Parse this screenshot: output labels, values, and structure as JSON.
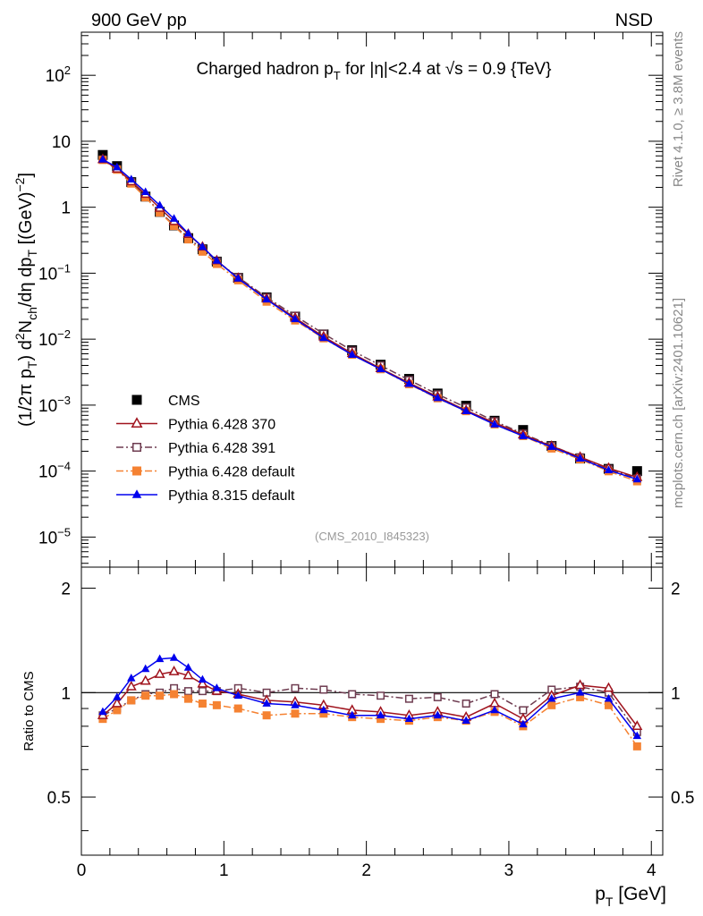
{
  "header": {
    "energy_label": "900 GeV pp",
    "process_label": "NSD"
  },
  "side_text": {
    "rivet": "Rivet 4.1.0, ≥ 3.8M events",
    "source": "mcplots.cern.ch [arXiv:2401.10621]"
  },
  "analysis_tag": "(CMS_2010_I845323)",
  "colors": {
    "cms": "#000000",
    "py6_370": "#a0141e",
    "py6_391": "#6e3c50",
    "py6_default": "#f58232",
    "py8_default": "#0000ee"
  },
  "chart_data": [
    {
      "type": "scatter",
      "title": "Charged hadron p_T for |η|<2.4 at √s = 0.9 {TeV}",
      "xlabel": "p_T [GeV]",
      "ylabel": "(1/2π p_T) d²N_ch/dη dp_T [(GeV)⁻²]",
      "yscale": "log",
      "xlim": [
        0,
        4.08
      ],
      "ylim": [
        3.5e-06,
        450
      ],
      "y_ticks": [
        {
          "value": 1e-05,
          "base": "10",
          "exp": "−5"
        },
        {
          "value": 0.0001,
          "base": "10",
          "exp": "−4"
        },
        {
          "value": 0.001,
          "base": "10",
          "exp": "−3"
        },
        {
          "value": 0.01,
          "base": "10",
          "exp": "−2"
        },
        {
          "value": 0.1,
          "base": "10",
          "exp": "−1"
        },
        {
          "value": 1,
          "base": "1",
          "exp": ""
        },
        {
          "value": 10,
          "base": "10",
          "exp": ""
        },
        {
          "value": 100,
          "base": "10",
          "exp": "2"
        }
      ],
      "x": [
        0.15,
        0.25,
        0.35,
        0.45,
        0.55,
        0.65,
        0.75,
        0.85,
        0.95,
        1.1,
        1.3,
        1.5,
        1.7,
        1.9,
        2.1,
        2.3,
        2.5,
        2.7,
        2.9,
        3.1,
        3.3,
        3.5,
        3.7,
        3.9
      ],
      "legend_position": "lower-left",
      "series": [
        {
          "name": "CMS",
          "key": "cms",
          "marker": "square-filled",
          "line": "none",
          "values": [
            6.2,
            4.2,
            2.4,
            1.45,
            0.85,
            0.53,
            0.34,
            0.23,
            0.15,
            0.085,
            0.043,
            0.022,
            0.0118,
            0.0068,
            0.0041,
            0.0025,
            0.0015,
            0.00098,
            0.00058,
            0.00042,
            0.00024,
            0.000155,
            0.000108,
            0.0001
          ]
        },
        {
          "name": "Pythia 6.428 370",
          "key": "py6_370",
          "marker": "triangle-open",
          "line": "solid",
          "values": [
            5.3,
            3.8,
            2.45,
            1.58,
            0.97,
            0.61,
            0.39,
            0.25,
            0.155,
            0.084,
            0.041,
            0.021,
            0.0109,
            0.0061,
            0.0036,
            0.00217,
            0.00134,
            0.00083,
            0.00054,
            0.000355,
            0.000239,
            0.000163,
            0.000111,
            8.05e-05
          ]
        },
        {
          "name": "Pythia 6.428 391",
          "key": "py6_391",
          "marker": "square-open",
          "line": "dashdot",
          "values": [
            5.3,
            3.8,
            2.4,
            1.45,
            0.85,
            0.54,
            0.34,
            0.232,
            0.152,
            0.087,
            0.043,
            0.0226,
            0.0121,
            0.0067,
            0.004,
            0.0024,
            0.00146,
            0.00092,
            0.00057,
            0.00037,
            0.000242,
            0.000162,
            0.000108,
            7.7e-05
          ]
        },
        {
          "name": "Pythia 6.428 default",
          "key": "py6_default",
          "marker": "square-filled",
          "line": "dashdot",
          "values": [
            5.2,
            3.7,
            2.28,
            1.41,
            0.83,
            0.52,
            0.325,
            0.212,
            0.138,
            0.078,
            0.037,
            0.0192,
            0.0103,
            0.0058,
            0.0035,
            0.00207,
            0.00127,
            0.00081,
            0.00051,
            0.00034,
            0.00022,
            0.000151,
            9.94e-05,
            7e-05
          ]
        },
        {
          "name": "Pythia 8.315 default",
          "key": "py8_default",
          "marker": "triangle-filled",
          "line": "solid",
          "values": [
            5.3,
            4.03,
            2.64,
            1.7,
            1.07,
            0.67,
            0.4,
            0.25,
            0.155,
            0.083,
            0.04,
            0.0201,
            0.0104,
            0.0058,
            0.0035,
            0.0021,
            0.00128,
            0.00081,
            0.00051,
            0.00034,
            0.000233,
            0.000155,
            0.000103,
            7.5e-05
          ]
        }
      ]
    },
    {
      "type": "scatter",
      "title": "",
      "xlabel": "p_T [GeV]",
      "ylabel": "Ratio to CMS",
      "xlim": [
        0,
        4.08
      ],
      "ylim": [
        0.34,
        2.3
      ],
      "x_ticks": [
        "0",
        "1",
        "2",
        "3",
        "4"
      ],
      "y_ticks": [
        0.5,
        1,
        2
      ],
      "reference_line": 1,
      "x": [
        0.15,
        0.25,
        0.35,
        0.45,
        0.55,
        0.65,
        0.75,
        0.85,
        0.95,
        1.1,
        1.3,
        1.5,
        1.7,
        1.9,
        2.1,
        2.3,
        2.5,
        2.7,
        2.9,
        3.1,
        3.3,
        3.5,
        3.7,
        3.9
      ],
      "series": [
        {
          "name": "Pythia 6.428 370",
          "key": "py6_370",
          "values": [
            0.86,
            0.93,
            1.04,
            1.08,
            1.13,
            1.15,
            1.12,
            1.06,
            1.01,
            0.99,
            0.95,
            0.94,
            0.92,
            0.89,
            0.88,
            0.86,
            0.88,
            0.85,
            0.93,
            0.84,
            0.98,
            1.05,
            1.03,
            0.8
          ]
        },
        {
          "name": "Pythia 6.428 391",
          "key": "py6_391",
          "values": [
            0.86,
            0.9,
            0.95,
            0.99,
            1.0,
            1.03,
            1.01,
            1.01,
            1.01,
            1.03,
            1.0,
            1.03,
            1.02,
            0.99,
            0.98,
            0.96,
            0.97,
            0.93,
            0.99,
            0.89,
            1.02,
            1.04,
            1.0,
            0.77
          ]
        },
        {
          "name": "Pythia 6.428 default",
          "key": "py6_default",
          "values": [
            0.84,
            0.89,
            0.95,
            0.98,
            0.98,
            0.99,
            0.96,
            0.93,
            0.92,
            0.9,
            0.86,
            0.87,
            0.87,
            0.85,
            0.84,
            0.83,
            0.85,
            0.83,
            0.88,
            0.8,
            0.92,
            0.97,
            0.92,
            0.7
          ]
        },
        {
          "name": "Pythia 8.315 default",
          "key": "py8_default",
          "values": [
            0.88,
            0.97,
            1.1,
            1.17,
            1.25,
            1.26,
            1.18,
            1.09,
            1.03,
            0.98,
            0.93,
            0.92,
            0.89,
            0.86,
            0.86,
            0.84,
            0.86,
            0.83,
            0.89,
            0.81,
            0.96,
            1.0,
            0.96,
            0.75
          ]
        }
      ]
    }
  ]
}
